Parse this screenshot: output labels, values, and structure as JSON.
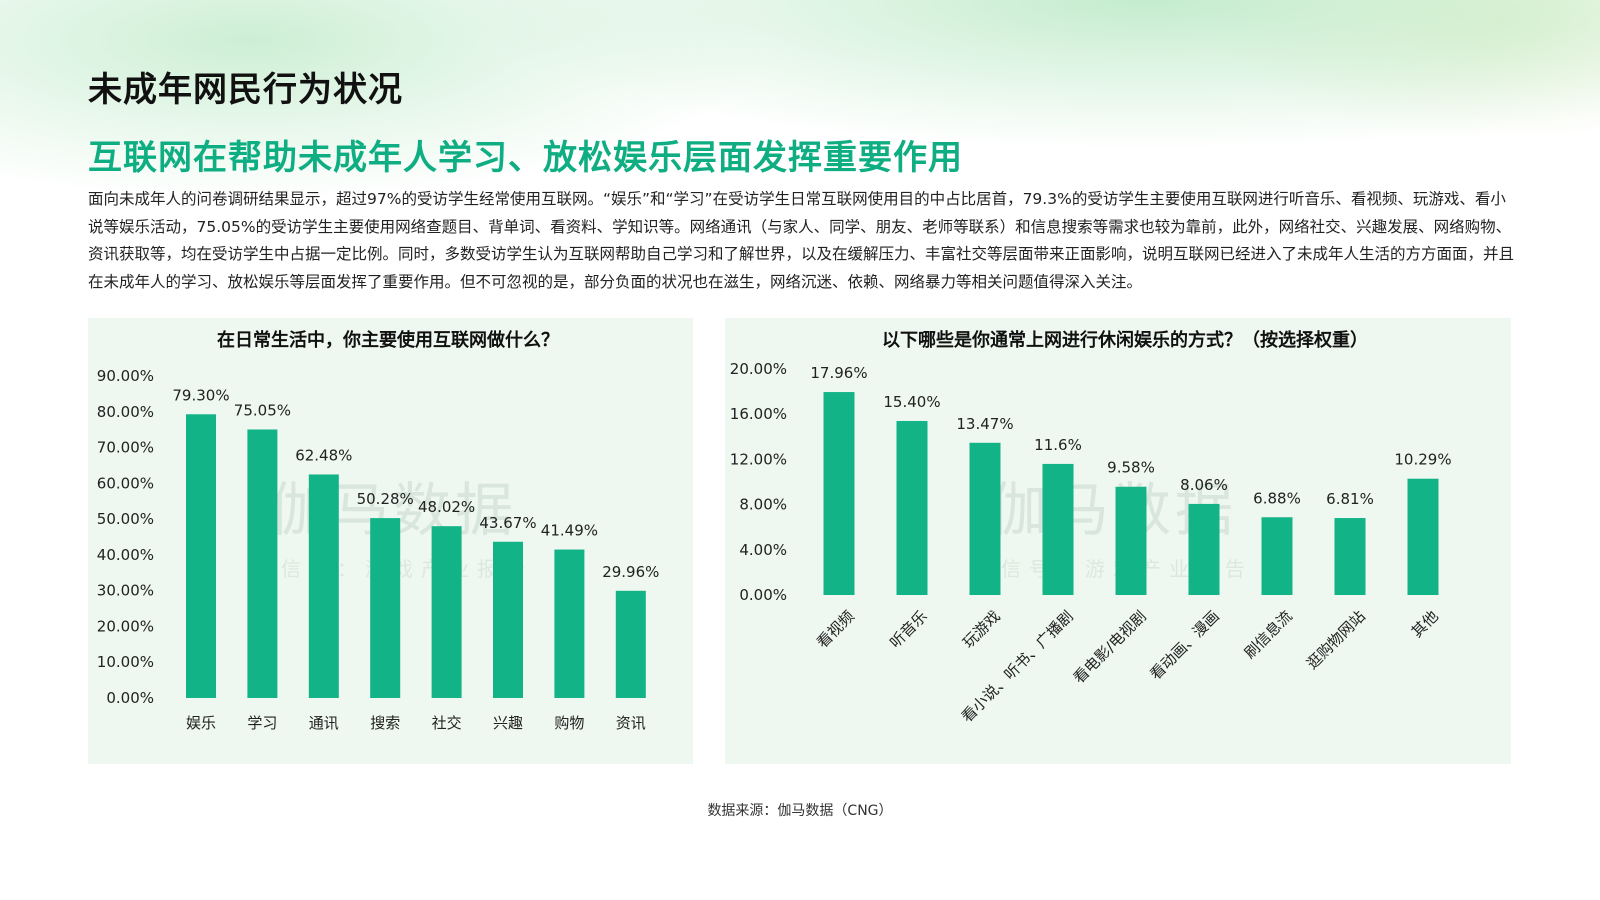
{
  "page": {
    "title": "未成年网民行为状况",
    "headline": "互联网在帮助未成年人学习、放松娱乐层面发挥重要作用",
    "intro": "面向未成年人的问卷调研结果显示，超过97%的受访学生经常使用互联网。“娱乐”和“学习”在受访学生日常互联网使用目的中占比居首，79.3%的受访学生主要使用互联网进行听音乐、看视频、玩游戏、看小说等娱乐活动，75.05%的受访学生主要使用网络查题目、背单词、看资料、学知识等。网络通讯（与家人、同学、朋友、老师等联系）和信息搜索等需求也较为靠前，此外，网络社交、兴趣发展、网络购物、资讯获取等，均在受访学生中占据一定比例。同时，多数受访学生认为互联网帮助自己学习和了解世界，以及在缓解压力、丰富社交等层面带来正面影响，说明互联网已经进入了未成年人生活的方方面面，并且在未成年人的学习、放松娱乐等层面发挥了重要作用。但不可忽视的是，部分负面的状况也在滋生，网络沉迷、依赖、网络暴力等相关问题值得深入关注。",
    "source": "数据来源：伽马数据（CNG）",
    "watermark": {
      "main": "伽马数据",
      "sub": "微信号：游戏产业报告"
    },
    "accent_color": "#0fae82",
    "bar_color": "#12b386",
    "panel_color": "#eef7f0"
  },
  "chart_data": [
    {
      "type": "bar",
      "title": "在日常生活中，你主要使用互联网做什么？",
      "categories": [
        "娱乐",
        "学习",
        "通讯",
        "搜索",
        "社交",
        "兴趣",
        "购物",
        "资讯"
      ],
      "values": [
        79.3,
        75.05,
        62.48,
        50.28,
        48.02,
        43.67,
        41.49,
        29.96
      ],
      "data_labels": [
        "79.30%",
        "75.05%",
        "62.48%",
        "50.28%",
        "48.02%",
        "43.67%",
        "41.49%",
        "29.96%"
      ],
      "yticks": [
        "0.00%",
        "10.00%",
        "20.00%",
        "30.00%",
        "40.00%",
        "50.00%",
        "60.00%",
        "70.00%",
        "80.00%",
        "90.00%"
      ],
      "ylim": [
        0,
        90
      ],
      "grid": false,
      "legend": "none"
    },
    {
      "type": "bar",
      "title": "以下哪些是你通常上网进行休闲娱乐的方式？（按选择权重）",
      "categories": [
        "看视频",
        "听音乐",
        "玩游戏",
        "看小说、听书、广播剧",
        "看电影/电视剧",
        "看动画、漫画",
        "刷信息流",
        "逛购物网站",
        "其他"
      ],
      "values": [
        17.96,
        15.4,
        13.47,
        11.6,
        9.58,
        8.06,
        6.88,
        6.81,
        10.29
      ],
      "data_labels": [
        "17.96%",
        "15.40%",
        "13.47%",
        "11.6%",
        "9.58%",
        "8.06%",
        "6.88%",
        "6.81%",
        "10.29%"
      ],
      "yticks": [
        "0.00%",
        "4.00%",
        "8.00%",
        "12.00%",
        "16.00%",
        "20.00%"
      ],
      "ylim": [
        0,
        20
      ],
      "grid": false,
      "legend": "none"
    }
  ]
}
